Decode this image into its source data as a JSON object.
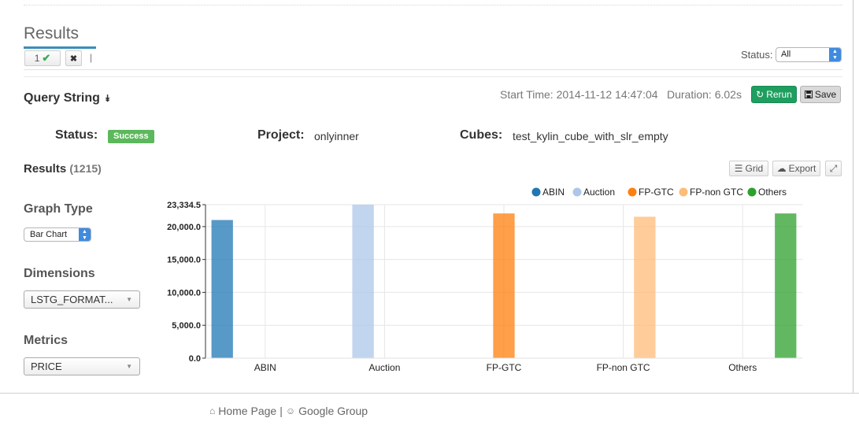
{
  "header": {
    "title": "Results"
  },
  "tabs": [
    {
      "label": "1",
      "check": "✔"
    },
    {
      "close": "✖"
    }
  ],
  "tab_separator": "|",
  "status_filter": {
    "label": "Status:",
    "value": "All"
  },
  "query": {
    "title": "Query String",
    "start_time": "Start Time: 2014-11-12 14:47:04",
    "duration": "Duration: 6.02s",
    "rerun_label": "Rerun",
    "save_label": "Save"
  },
  "info": {
    "status_label": "Status:",
    "status_value": "Success",
    "project_label": "Project:",
    "project_value": "onlyinner",
    "cubes_label": "Cubes:",
    "cubes_value": "test_kylin_cube_with_slr_empty"
  },
  "results": {
    "title": "Results",
    "count": "(1215)",
    "grid_label": "Grid",
    "export_label": "Export"
  },
  "sidebar": {
    "graph_type_title": "Graph Type",
    "graph_type_value": "Bar Chart",
    "dimensions_title": "Dimensions",
    "dimensions_value": "LSTG_FORMAT...",
    "metrics_title": "Metrics",
    "metrics_value": "PRICE"
  },
  "chart_data": {
    "type": "bar",
    "categories": [
      "ABIN",
      "Auction",
      "FP-GTC",
      "FP-non GTC",
      "Others"
    ],
    "values": [
      21000,
      23334.5,
      22000,
      21500,
      22000
    ],
    "colors": [
      "#1f77b4",
      "#aec7e8",
      "#ff7f0e",
      "#ffbb78",
      "#2ca02c"
    ],
    "legend": [
      "ABIN",
      "Auction",
      "FP-GTC",
      "FP-non GTC",
      "Others"
    ],
    "legend_position": "top-right",
    "yticks": [
      "0.0",
      "5,000.0",
      "10,000.0",
      "15,000.0",
      "20,000.0",
      "23,334.5"
    ],
    "ylim": [
      0,
      23334.5
    ],
    "grid": true
  },
  "footer": {
    "home_label": "Home Page",
    "separator": "|",
    "group_label": "Google Group"
  }
}
